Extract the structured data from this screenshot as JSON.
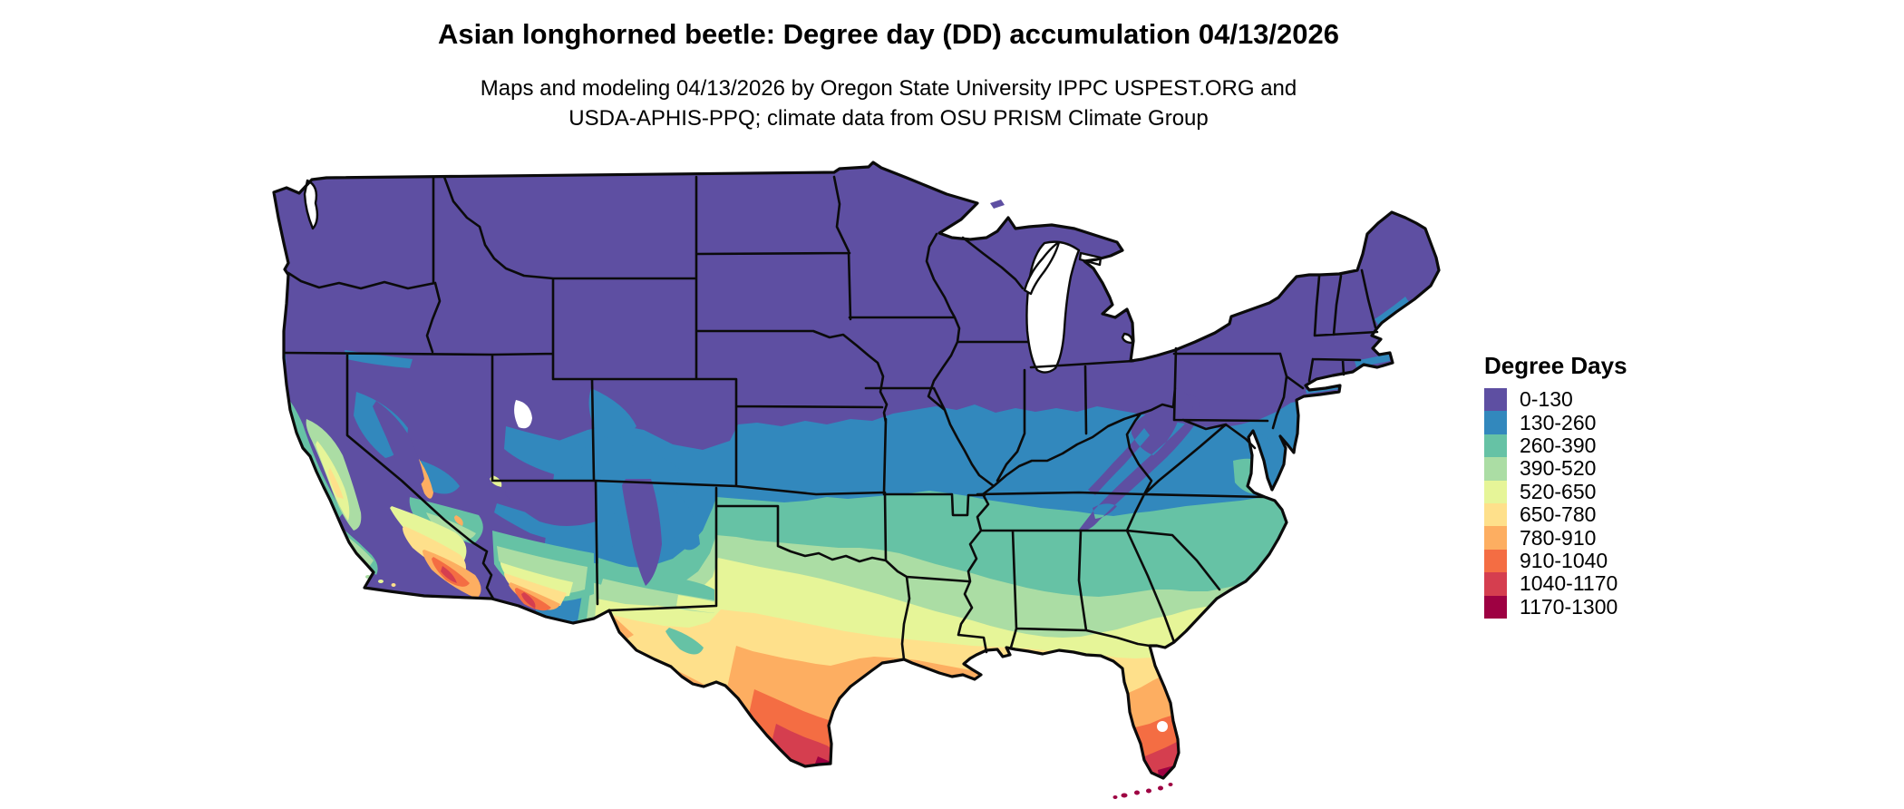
{
  "title": "Asian longhorned beetle: Degree day (DD) accumulation 04/13/2026",
  "subtitle": {
    "line1": "Maps and modeling 04/13/2026 by Oregon State University IPPC USPEST.ORG and",
    "line2": "USDA-APHIS-PPQ; climate data from OSU PRISM Climate Group"
  },
  "legend": {
    "title": "Degree Days",
    "entries": [
      {
        "label": "0-130",
        "color": "#5e4fa2"
      },
      {
        "label": "130-260",
        "color": "#3288bd"
      },
      {
        "label": "260-390",
        "color": "#66c2a5"
      },
      {
        "label": "390-520",
        "color": "#abdda4"
      },
      {
        "label": "520-650",
        "color": "#e6f598"
      },
      {
        "label": "650-780",
        "color": "#fee08b"
      },
      {
        "label": "780-910",
        "color": "#fdae61"
      },
      {
        "label": "910-1040",
        "color": "#f46d43"
      },
      {
        "label": "1040-1170",
        "color": "#d53e4f"
      },
      {
        "label": "1170-1300",
        "color": "#9e0142"
      }
    ]
  },
  "chart_data": {
    "type": "choropleth_map",
    "region": "Contiguous United States (state boundaries shown)",
    "variable": "Degree day (DD) accumulation for Asian longhorned beetle",
    "date": "04/13/2026",
    "classes": [
      {
        "range": "0-130",
        "color": "#5e4fa2",
        "where": "Pacific Northwest, northern Rockies, northern plains, Great Lakes, Northeast, Appalachian ridges, Sierra Nevada"
      },
      {
        "range": "130-260",
        "color": "#3288bd",
        "where": "central plains band (Kansas-Missouri-Ohio valley), Virginia/Maryland tidewater, Great Basin patches"
      },
      {
        "range": "260-390",
        "color": "#66c2a5",
        "where": "Oklahoma, Tennessee valley, Carolinas coastal plain, California coast, southern Nevada/Arizona uplands"
      },
      {
        "range": "390-520",
        "color": "#abdda4",
        "where": "north Texas, Arkansas, mid-South, central Georgia/Alabama, California valley rim"
      },
      {
        "range": "520-650",
        "color": "#e6f598",
        "where": "central Texas, Deep South, north Florida, Central Valley core, Mojave"
      },
      {
        "range": "650-780",
        "color": "#fee08b",
        "where": "south-central Texas, Gulf coastal plain, north-central Florida"
      },
      {
        "range": "780-910",
        "color": "#fdae61",
        "where": "Texas coastal bend, Louisiana coast, central Florida, low deserts of Arizona/California"
      },
      {
        "range": "910-1040",
        "color": "#f46d43",
        "where": "deep south Texas, south Florida, Phoenix/Imperial valley cores"
      },
      {
        "range": "1040-1170",
        "color": "#d53e4f",
        "where": "lower Rio Grande valley, southeast Florida"
      },
      {
        "range": "1170-1300",
        "color": "#9e0142",
        "where": "southernmost Texas tip, Florida Keys"
      }
    ],
    "legend_position": "right",
    "background": "#ffffff",
    "boundary_color": "#000000"
  }
}
